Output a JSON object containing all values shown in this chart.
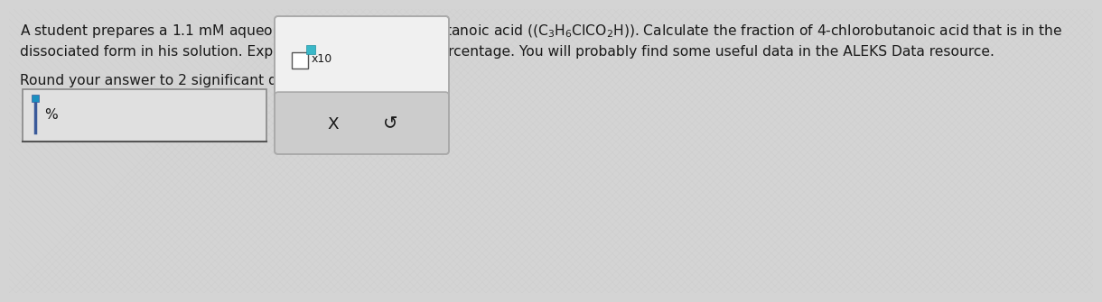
{
  "background_color": "#d4d4d4",
  "text_line1": "A student prepares a 1.1 mM aqueous solution of 4-chlorobutanoic acid ($\\mathregular{(C_3H_6ClCO_2H)}$). Calculate the fraction of 4-chlorobutanoic acid that is in the",
  "text_line2": "dissociated form in his solution. Express your answer as a percentage. You will probably find some useful data in the ALEKS Data resource.",
  "text_line3": "Round your answer to 2 significant digits.",
  "cursor_color": "#3a5a9a",
  "cursor_color2": "#1a90c0",
  "percent_sign": "%",
  "x10_text": "x10",
  "x_button_text": "X",
  "undo_button_text": "↺",
  "font_color": "#1a1a1a",
  "font_size_main": 11.2,
  "font_size_small": 9.0,
  "box1_color": "#e0e0e0",
  "box1_border": "#888888",
  "panel2_top_color": "#f0f0f0",
  "panel2_bot_color": "#cccccc",
  "panel2_border": "#aaaaaa",
  "checkbox_color": "white",
  "checkbox_border": "#555555",
  "teal_color": "#3ab8c8"
}
